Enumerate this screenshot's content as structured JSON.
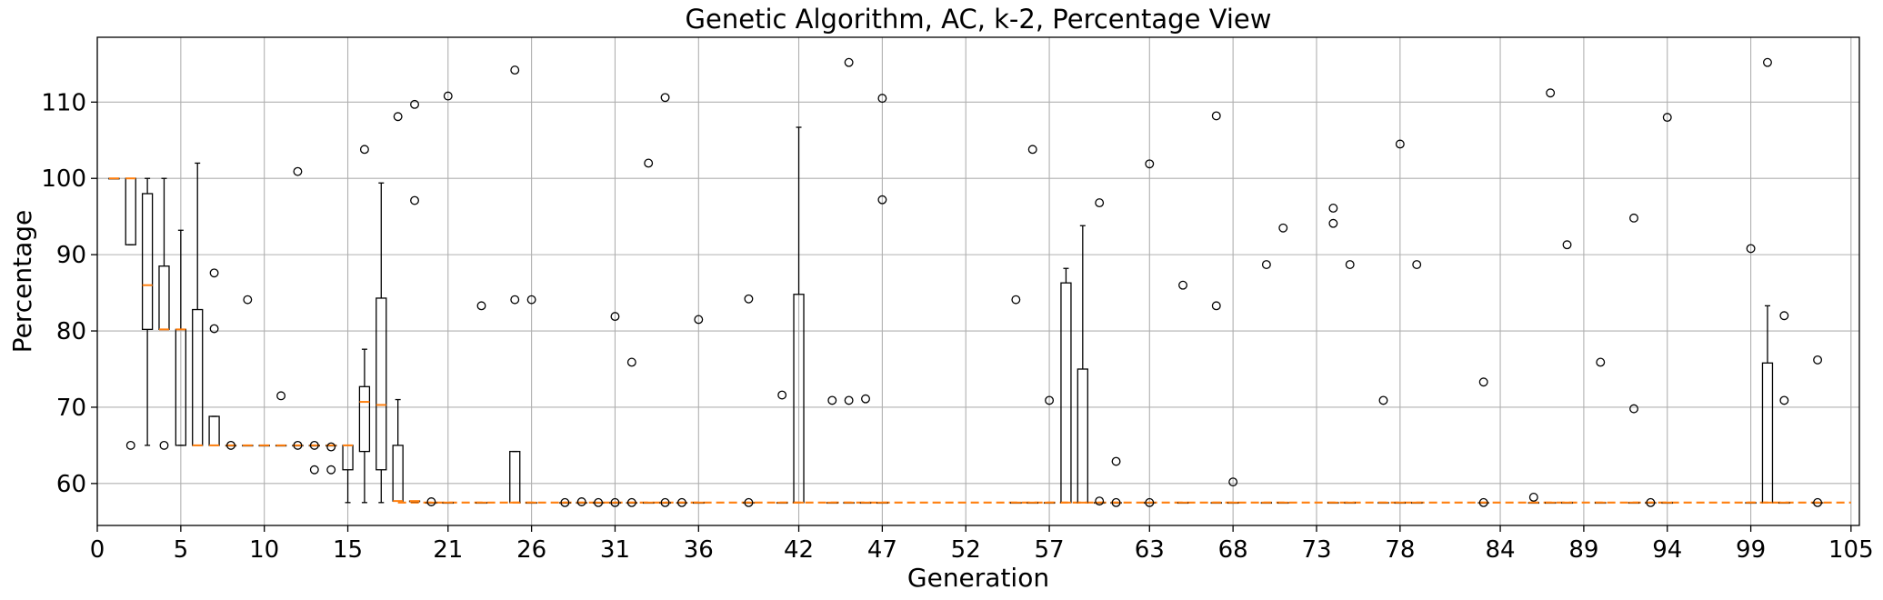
{
  "chart_data": {
    "type": "boxplot",
    "title": "Genetic Algorithm, AC, k-2, Percentage View",
    "xlabel": "Generation",
    "ylabel": "Percentage",
    "xlim": [
      0,
      105.5
    ],
    "ylim": [
      54.5,
      118.5
    ],
    "grid": true,
    "xticks": [
      0,
      5,
      10,
      15,
      21,
      26,
      31,
      36,
      42,
      47,
      52,
      57,
      63,
      68,
      73,
      78,
      84,
      89,
      94,
      99,
      105
    ],
    "yticks": [
      60,
      70,
      80,
      90,
      100,
      110
    ],
    "colors": {
      "box": "#000000",
      "median": "#ff7f0e",
      "grid": "#b0b0b0"
    },
    "flat_median": 57.5,
    "boxes": [
      {
        "x": 1,
        "q1": 100,
        "median": 100,
        "q3": 100,
        "whislo": 100,
        "whishi": 100,
        "fliers": []
      },
      {
        "x": 2,
        "q1": 91.3,
        "median": 100,
        "q3": 100,
        "whislo": 91.3,
        "whishi": 100,
        "fliers": [
          65
        ]
      },
      {
        "x": 3,
        "q1": 80.2,
        "median": 86,
        "q3": 98,
        "whislo": 65,
        "whishi": 100,
        "fliers": []
      },
      {
        "x": 4,
        "q1": 80.2,
        "median": 80.2,
        "q3": 88.5,
        "whislo": 80.2,
        "whishi": 100,
        "fliers": [
          65
        ]
      },
      {
        "x": 5,
        "q1": 65,
        "median": 80.2,
        "q3": 80.2,
        "whislo": 65,
        "whishi": 93.2,
        "fliers": []
      },
      {
        "x": 6,
        "q1": 65,
        "median": 65,
        "q3": 82.8,
        "whislo": 65,
        "whishi": 102,
        "fliers": []
      },
      {
        "x": 7,
        "q1": 65,
        "median": 65,
        "q3": 68.8,
        "whislo": 65,
        "whishi": 68.8,
        "fliers": [
          87.6,
          80.3
        ]
      },
      {
        "x": 8,
        "q1": 65,
        "median": 65,
        "q3": 65,
        "whislo": 65,
        "whishi": 65,
        "fliers": [
          65
        ]
      },
      {
        "x": 9,
        "q1": 65,
        "median": 65,
        "q3": 65,
        "whislo": 65,
        "whishi": 65,
        "fliers": [
          84.1
        ]
      },
      {
        "x": 10,
        "q1": 65,
        "median": 65,
        "q3": 65,
        "whislo": 65,
        "whishi": 65,
        "fliers": []
      },
      {
        "x": 11,
        "q1": 65,
        "median": 65,
        "q3": 65,
        "whislo": 65,
        "whishi": 65,
        "fliers": [
          71.5
        ]
      },
      {
        "x": 12,
        "q1": 65,
        "median": 65,
        "q3": 65,
        "whislo": 65,
        "whishi": 65,
        "fliers": [
          100.9,
          65
        ]
      },
      {
        "x": 13,
        "q1": 65,
        "median": 65,
        "q3": 65,
        "whislo": 65,
        "whishi": 65,
        "fliers": [
          65,
          61.8
        ]
      },
      {
        "x": 14,
        "q1": 65,
        "median": 65,
        "q3": 65,
        "whislo": 65,
        "whishi": 65,
        "fliers": [
          64.8,
          61.8
        ]
      },
      {
        "x": 15,
        "q1": 61.8,
        "median": 65,
        "q3": 65,
        "whislo": 57.5,
        "whishi": 65,
        "fliers": []
      },
      {
        "x": 16,
        "q1": 64.2,
        "median": 70.7,
        "q3": 72.7,
        "whislo": 57.5,
        "whishi": 77.6,
        "fliers": [
          103.8
        ]
      },
      {
        "x": 17,
        "q1": 61.8,
        "median": 70.3,
        "q3": 84.3,
        "whislo": 57.5,
        "whishi": 99.4,
        "fliers": []
      },
      {
        "x": 18,
        "q1": 57.7,
        "median": 57.7,
        "q3": 65,
        "whislo": 57.7,
        "whishi": 71,
        "fliers": [
          108.1
        ]
      },
      {
        "x": 19,
        "q1": 57.7,
        "median": 57.7,
        "q3": 57.7,
        "whislo": 57.7,
        "whishi": 57.7,
        "fliers": [
          109.7,
          97.1
        ]
      },
      {
        "x": 20,
        "q1": 57.5,
        "median": 57.5,
        "q3": 57.5,
        "whislo": 57.5,
        "whishi": 57.5,
        "fliers": [
          57.6
        ]
      },
      {
        "x": 21,
        "q1": 57.5,
        "median": 57.5,
        "q3": 57.5,
        "whislo": 57.5,
        "whishi": 57.5,
        "fliers": [
          110.8
        ]
      },
      {
        "x": 23,
        "q1": 57.5,
        "median": 57.5,
        "q3": 57.5,
        "whislo": 57.5,
        "whishi": 57.5,
        "fliers": [
          83.3
        ]
      },
      {
        "x": 25,
        "q1": 57.5,
        "median": 57.5,
        "q3": 64.2,
        "whislo": 57.5,
        "whishi": 64.2,
        "fliers": [
          114.2,
          84.1
        ]
      },
      {
        "x": 26,
        "q1": 57.5,
        "median": 57.5,
        "q3": 57.5,
        "whislo": 57.5,
        "whishi": 57.5,
        "fliers": [
          84.1
        ]
      },
      {
        "x": 28,
        "q1": 57.5,
        "median": 57.5,
        "q3": 57.5,
        "whislo": 57.5,
        "whishi": 57.5,
        "fliers": [
          57.5
        ]
      },
      {
        "x": 29,
        "q1": 57.5,
        "median": 57.5,
        "q3": 57.5,
        "whislo": 57.5,
        "whishi": 57.5,
        "fliers": [
          57.6
        ]
      },
      {
        "x": 30,
        "q1": 57.5,
        "median": 57.5,
        "q3": 57.5,
        "whislo": 57.5,
        "whishi": 57.5,
        "fliers": [
          57.5
        ]
      },
      {
        "x": 31,
        "q1": 57.5,
        "median": 57.5,
        "q3": 57.5,
        "whislo": 57.5,
        "whishi": 57.5,
        "fliers": [
          81.9,
          57.5
        ]
      },
      {
        "x": 32,
        "q1": 57.5,
        "median": 57.5,
        "q3": 57.5,
        "whislo": 57.5,
        "whishi": 57.5,
        "fliers": [
          75.9,
          57.5
        ]
      },
      {
        "x": 33,
        "q1": 57.5,
        "median": 57.5,
        "q3": 57.5,
        "whislo": 57.5,
        "whishi": 57.5,
        "fliers": [
          102
        ]
      },
      {
        "x": 34,
        "q1": 57.5,
        "median": 57.5,
        "q3": 57.5,
        "whislo": 57.5,
        "whishi": 57.5,
        "fliers": [
          110.6,
          57.5
        ]
      },
      {
        "x": 35,
        "q1": 57.5,
        "median": 57.5,
        "q3": 57.5,
        "whislo": 57.5,
        "whishi": 57.5,
        "fliers": [
          57.5
        ]
      },
      {
        "x": 36,
        "q1": 57.5,
        "median": 57.5,
        "q3": 57.5,
        "whislo": 57.5,
        "whishi": 57.5,
        "fliers": [
          81.5
        ]
      },
      {
        "x": 39,
        "q1": 57.5,
        "median": 57.5,
        "q3": 57.5,
        "whislo": 57.5,
        "whishi": 57.5,
        "fliers": [
          84.2,
          57.5
        ]
      },
      {
        "x": 41,
        "q1": 57.5,
        "median": 57.5,
        "q3": 57.5,
        "whislo": 57.5,
        "whishi": 57.5,
        "fliers": [
          71.6
        ]
      },
      {
        "x": 42,
        "q1": 57.5,
        "median": 57.5,
        "q3": 84.8,
        "whislo": 57.5,
        "whishi": 106.7,
        "fliers": []
      },
      {
        "x": 44,
        "q1": 57.5,
        "median": 57.5,
        "q3": 57.5,
        "whislo": 57.5,
        "whishi": 57.5,
        "fliers": [
          70.9
        ]
      },
      {
        "x": 45,
        "q1": 57.5,
        "median": 57.5,
        "q3": 57.5,
        "whislo": 57.5,
        "whishi": 57.5,
        "fliers": [
          115.2,
          70.9
        ]
      },
      {
        "x": 46,
        "q1": 57.5,
        "median": 57.5,
        "q3": 57.5,
        "whislo": 57.5,
        "whishi": 57.5,
        "fliers": [
          71.1
        ]
      },
      {
        "x": 47,
        "q1": 57.5,
        "median": 57.5,
        "q3": 57.5,
        "whislo": 57.5,
        "whishi": 57.5,
        "fliers": [
          110.5,
          97.2
        ]
      },
      {
        "x": 55,
        "q1": 57.5,
        "median": 57.5,
        "q3": 57.5,
        "whislo": 57.5,
        "whishi": 57.5,
        "fliers": [
          84.1
        ]
      },
      {
        "x": 56,
        "q1": 57.5,
        "median": 57.5,
        "q3": 57.5,
        "whislo": 57.5,
        "whishi": 57.5,
        "fliers": [
          103.8
        ]
      },
      {
        "x": 57,
        "q1": 57.5,
        "median": 57.5,
        "q3": 57.5,
        "whislo": 57.5,
        "whishi": 57.5,
        "fliers": [
          70.9
        ]
      },
      {
        "x": 58,
        "q1": 57.5,
        "median": 57.5,
        "q3": 86.3,
        "whislo": 57.5,
        "whishi": 88.2,
        "fliers": []
      },
      {
        "x": 59,
        "q1": 57.5,
        "median": 57.5,
        "q3": 75,
        "whislo": 57.5,
        "whishi": 93.8,
        "fliers": []
      },
      {
        "x": 60,
        "q1": 57.5,
        "median": 57.5,
        "q3": 57.5,
        "whislo": 57.5,
        "whishi": 57.5,
        "fliers": [
          96.8,
          57.7
        ]
      },
      {
        "x": 61,
        "q1": 57.5,
        "median": 57.5,
        "q3": 57.5,
        "whislo": 57.5,
        "whishi": 57.5,
        "fliers": [
          62.9,
          57.5
        ]
      },
      {
        "x": 63,
        "q1": 57.5,
        "median": 57.5,
        "q3": 57.5,
        "whislo": 57.5,
        "whishi": 57.5,
        "fliers": [
          101.9,
          57.5
        ]
      },
      {
        "x": 65,
        "q1": 57.5,
        "median": 57.5,
        "q3": 57.5,
        "whislo": 57.5,
        "whishi": 57.5,
        "fliers": [
          86
        ]
      },
      {
        "x": 67,
        "q1": 57.5,
        "median": 57.5,
        "q3": 57.5,
        "whislo": 57.5,
        "whishi": 57.5,
        "fliers": [
          108.2,
          83.3
        ]
      },
      {
        "x": 68,
        "q1": 57.5,
        "median": 57.5,
        "q3": 57.5,
        "whislo": 57.5,
        "whishi": 57.5,
        "fliers": [
          60.2
        ]
      },
      {
        "x": 70,
        "q1": 57.5,
        "median": 57.5,
        "q3": 57.5,
        "whislo": 57.5,
        "whishi": 57.5,
        "fliers": [
          88.7
        ]
      },
      {
        "x": 71,
        "q1": 57.5,
        "median": 57.5,
        "q3": 57.5,
        "whislo": 57.5,
        "whishi": 57.5,
        "fliers": [
          93.5
        ]
      },
      {
        "x": 74,
        "q1": 57.5,
        "median": 57.5,
        "q3": 57.5,
        "whislo": 57.5,
        "whishi": 57.5,
        "fliers": [
          96.1,
          94.1
        ]
      },
      {
        "x": 75,
        "q1": 57.5,
        "median": 57.5,
        "q3": 57.5,
        "whislo": 57.5,
        "whishi": 57.5,
        "fliers": [
          88.7
        ]
      },
      {
        "x": 77,
        "q1": 57.5,
        "median": 57.5,
        "q3": 57.5,
        "whislo": 57.5,
        "whishi": 57.5,
        "fliers": [
          70.9
        ]
      },
      {
        "x": 78,
        "q1": 57.5,
        "median": 57.5,
        "q3": 57.5,
        "whislo": 57.5,
        "whishi": 57.5,
        "fliers": [
          104.5
        ]
      },
      {
        "x": 79,
        "q1": 57.5,
        "median": 57.5,
        "q3": 57.5,
        "whislo": 57.5,
        "whishi": 57.5,
        "fliers": [
          88.7
        ]
      },
      {
        "x": 83,
        "q1": 57.5,
        "median": 57.5,
        "q3": 57.5,
        "whislo": 57.5,
        "whishi": 57.5,
        "fliers": [
          73.3,
          57.5
        ]
      },
      {
        "x": 86,
        "q1": 57.5,
        "median": 57.5,
        "q3": 57.5,
        "whislo": 57.5,
        "whishi": 57.5,
        "fliers": [
          58.2
        ]
      },
      {
        "x": 87,
        "q1": 57.5,
        "median": 57.5,
        "q3": 57.5,
        "whislo": 57.5,
        "whishi": 57.5,
        "fliers": [
          111.2
        ]
      },
      {
        "x": 88,
        "q1": 57.5,
        "median": 57.5,
        "q3": 57.5,
        "whislo": 57.5,
        "whishi": 57.5,
        "fliers": [
          91.3
        ]
      },
      {
        "x": 90,
        "q1": 57.5,
        "median": 57.5,
        "q3": 57.5,
        "whislo": 57.5,
        "whishi": 57.5,
        "fliers": [
          75.9
        ]
      },
      {
        "x": 92,
        "q1": 57.5,
        "median": 57.5,
        "q3": 57.5,
        "whislo": 57.5,
        "whishi": 57.5,
        "fliers": [
          94.8,
          69.8
        ]
      },
      {
        "x": 93,
        "q1": 57.5,
        "median": 57.5,
        "q3": 57.5,
        "whislo": 57.5,
        "whishi": 57.5,
        "fliers": [
          57.5
        ]
      },
      {
        "x": 94,
        "q1": 57.5,
        "median": 57.5,
        "q3": 57.5,
        "whislo": 57.5,
        "whishi": 57.5,
        "fliers": [
          108
        ]
      },
      {
        "x": 99,
        "q1": 57.5,
        "median": 57.5,
        "q3": 57.5,
        "whislo": 57.5,
        "whishi": 57.5,
        "fliers": [
          90.8
        ]
      },
      {
        "x": 100,
        "q1": 57.5,
        "median": 57.5,
        "q3": 75.8,
        "whislo": 57.5,
        "whishi": 83.3,
        "fliers": [
          115.2
        ]
      },
      {
        "x": 101,
        "q1": 57.5,
        "median": 57.5,
        "q3": 57.5,
        "whislo": 57.5,
        "whishi": 57.5,
        "fliers": [
          82,
          70.9
        ]
      },
      {
        "x": 103,
        "q1": 57.5,
        "median": 57.5,
        "q3": 57.5,
        "whislo": 57.5,
        "whishi": 57.5,
        "fliers": [
          76.2,
          57.5
        ]
      }
    ]
  }
}
